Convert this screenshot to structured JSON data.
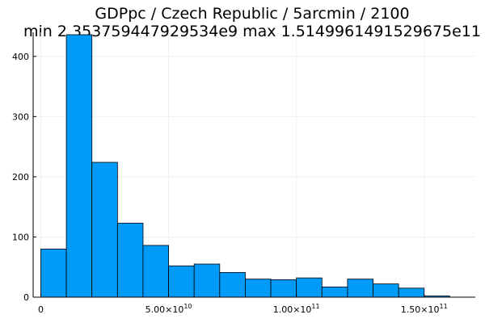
{
  "chart_data": {
    "type": "bar",
    "title_line1": "GDPpc / Czech Republic / 5arcmin / 2100",
    "title_line2": "min 2.353759447929534e9  max 1.5149961491529675e11",
    "bin_edges": [
      0,
      10000000000,
      20000000000,
      30000000000,
      40000000000,
      50000000000,
      60000000000,
      70000000000,
      80000000000,
      90000000000,
      100000000000,
      110000000000,
      120000000000,
      130000000000,
      140000000000,
      150000000000,
      160000000000
    ],
    "values": [
      80,
      436,
      224,
      123,
      86,
      52,
      55,
      41,
      30,
      29,
      32,
      17,
      30,
      22,
      15,
      2
    ],
    "xlim": [
      -3000000000,
      170000000000
    ],
    "ylim": [
      0,
      440
    ],
    "x_ticks": [
      {
        "value": 0,
        "mantissa": "0",
        "exponent": ""
      },
      {
        "value": 50000000000,
        "mantissa": "5.00×10",
        "exponent": "10"
      },
      {
        "value": 100000000000,
        "mantissa": "1.00×10",
        "exponent": "11"
      },
      {
        "value": 150000000000,
        "mantissa": "1.50×10",
        "exponent": "11"
      }
    ],
    "y_ticks": [
      0,
      100,
      200,
      300,
      400
    ],
    "bar_color": "#009af9",
    "bar_edge_color": "#000000",
    "grid": true
  }
}
